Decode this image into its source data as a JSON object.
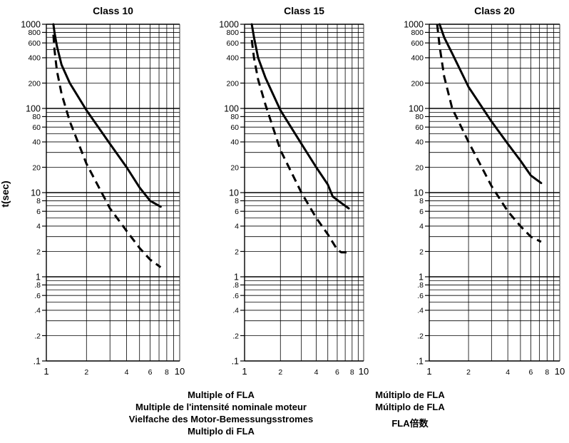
{
  "y_axis_label": "t(sec)",
  "captions": {
    "left": [
      "Multiple of FLA",
      "Multiple de l'intensité nominale moteur",
      "Vielfache des Motor-Bemessungsstromes",
      "Multiplo di FLA"
    ],
    "right": [
      "Múltiplo de FLA",
      "Múltiplo de FLA",
      "FLA倍数"
    ]
  },
  "chart_data": [
    {
      "type": "line",
      "title": "Class 10",
      "xscale": "log",
      "yscale": "log",
      "xlim": [
        1,
        10
      ],
      "ylim": [
        0.1,
        1000
      ],
      "x_ticks": [
        "1",
        "2",
        "4",
        "6",
        "8",
        "10"
      ],
      "y_ticks": [
        "1000",
        "800",
        "600",
        "400",
        "200",
        "100",
        "80",
        "60",
        "40",
        "20",
        "10",
        "8",
        "6",
        "4",
        "2",
        "1",
        ".8",
        ".6",
        ".4",
        ".2",
        ".1"
      ],
      "grid": true,
      "series": [
        {
          "style": "solid",
          "x": [
            1.13,
            1.15,
            1.2,
            1.3,
            1.5,
            2,
            3,
            4,
            5,
            6,
            7.2
          ],
          "y": [
            1000,
            800,
            550,
            330,
            200,
            95,
            38,
            20,
            11.5,
            8,
            6.8
          ]
        },
        {
          "style": "dashed",
          "x": [
            1.13,
            1.15,
            1.2,
            1.3,
            1.5,
            2,
            3,
            4,
            5,
            6,
            7.2
          ],
          "y": [
            750,
            500,
            280,
            150,
            70,
            22,
            6.5,
            3.5,
            2.2,
            1.6,
            1.3
          ]
        }
      ]
    },
    {
      "type": "line",
      "title": "Class 15",
      "xscale": "log",
      "yscale": "log",
      "xlim": [
        1,
        10
      ],
      "ylim": [
        0.1,
        1000
      ],
      "x_ticks": [
        "1",
        "2",
        "4",
        "6",
        "8",
        "10"
      ],
      "y_ticks": [
        "1000",
        "800",
        "600",
        "400",
        "200",
        "100",
        "80",
        "60",
        "40",
        "20",
        "10",
        "8",
        "6",
        "4",
        "2",
        "1",
        ".8",
        ".6",
        ".4",
        ".2",
        ".1"
      ],
      "grid": true,
      "series": [
        {
          "style": "solid",
          "x": [
            1.15,
            1.2,
            1.3,
            1.5,
            2,
            3,
            4,
            5,
            5.5,
            6.5,
            7.5
          ],
          "y": [
            1000,
            700,
            400,
            230,
            95,
            38,
            20,
            12.5,
            9,
            7.5,
            6.5
          ]
        },
        {
          "style": "dashed",
          "x": [
            1.15,
            1.2,
            1.3,
            1.5,
            2,
            3,
            4,
            5,
            6,
            6.5,
            7.5
          ],
          "y": [
            650,
            400,
            220,
            110,
            32,
            10,
            5,
            3.2,
            2.1,
            1.95,
            1.95
          ]
        }
      ]
    },
    {
      "type": "line",
      "title": "Class 20",
      "xscale": "log",
      "yscale": "log",
      "xlim": [
        1,
        10
      ],
      "ylim": [
        0.1,
        1000
      ],
      "x_ticks": [
        "1",
        "2",
        "4",
        "6",
        "8",
        "10"
      ],
      "y_ticks": [
        "1000",
        "800",
        "600",
        "400",
        "200",
        "100",
        "80",
        "60",
        "40",
        "20",
        "10",
        "8",
        "6",
        "4",
        "2",
        "1",
        ".8",
        ".6",
        ".4",
        ".2",
        ".1"
      ],
      "grid": true,
      "series": [
        {
          "style": "solid",
          "x": [
            1.2,
            1.3,
            1.5,
            2,
            3,
            4,
            5,
            6,
            7.2
          ],
          "y": [
            1000,
            700,
            450,
            180,
            70,
            38,
            24,
            16,
            13
          ]
        },
        {
          "style": "dashed",
          "x": [
            1.15,
            1.2,
            1.3,
            1.5,
            2,
            3,
            4,
            5,
            6,
            7.2
          ],
          "y": [
            1000,
            550,
            240,
            100,
            40,
            12,
            6,
            4,
            3,
            2.6
          ]
        }
      ]
    }
  ]
}
